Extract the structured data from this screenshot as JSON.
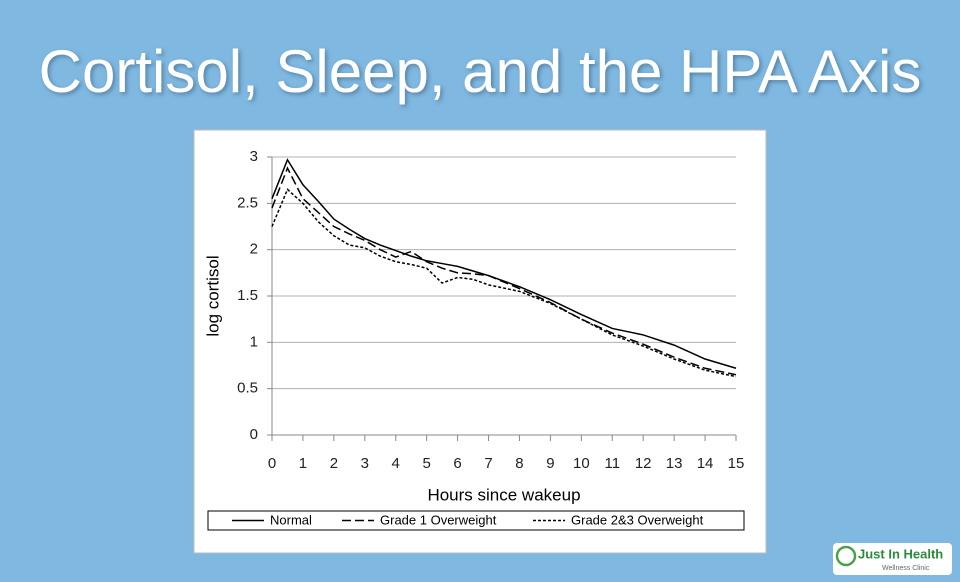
{
  "title": "Cortisol, Sleep, and the HPA Axis",
  "logo": {
    "name": "Just In Health",
    "tagline": "Wellness Clinic"
  },
  "chart_data": {
    "type": "line",
    "xlabel": "Hours since wakeup",
    "ylabel": "log cortisol",
    "x": [
      0,
      0.5,
      1,
      1.5,
      2,
      2.5,
      3,
      3.5,
      4,
      4.5,
      5,
      5.5,
      6,
      6.5,
      7,
      8,
      9,
      10,
      11,
      12,
      13,
      14,
      15
    ],
    "series": [
      {
        "name": "Normal",
        "color": "#000000",
        "style": "solid",
        "values": [
          2.55,
          2.97,
          2.7,
          2.52,
          2.33,
          2.22,
          2.12,
          2.05,
          1.99,
          1.93,
          1.88,
          1.85,
          1.82,
          1.77,
          1.72,
          1.6,
          1.46,
          1.3,
          1.15,
          1.08,
          0.97,
          0.82,
          0.72
        ]
      },
      {
        "name": "Grade 1 Overweight",
        "color": "#000000",
        "style": "dashed",
        "values": [
          2.45,
          2.88,
          2.55,
          2.4,
          2.25,
          2.17,
          2.1,
          2.0,
          1.92,
          1.98,
          1.87,
          1.8,
          1.75,
          1.74,
          1.72,
          1.58,
          1.43,
          1.25,
          1.1,
          0.98,
          0.84,
          0.72,
          0.65
        ]
      },
      {
        "name": "Grade 2&3 Overweight",
        "color": "#000000",
        "style": "dotted",
        "values": [
          2.25,
          2.65,
          2.5,
          2.3,
          2.15,
          2.05,
          2.02,
          1.93,
          1.87,
          1.84,
          1.8,
          1.64,
          1.7,
          1.68,
          1.62,
          1.55,
          1.42,
          1.25,
          1.08,
          0.96,
          0.82,
          0.7,
          0.63
        ]
      }
    ],
    "xlim": [
      0,
      15
    ],
    "xticks": [
      0,
      1,
      2,
      3,
      4,
      5,
      6,
      7,
      8,
      9,
      10,
      11,
      12,
      13,
      14,
      15
    ],
    "ylim": [
      0,
      3
    ],
    "yticks": [
      0,
      0.5,
      1,
      1.5,
      2,
      2.5,
      3
    ],
    "grid": true,
    "legend": "bottom"
  }
}
